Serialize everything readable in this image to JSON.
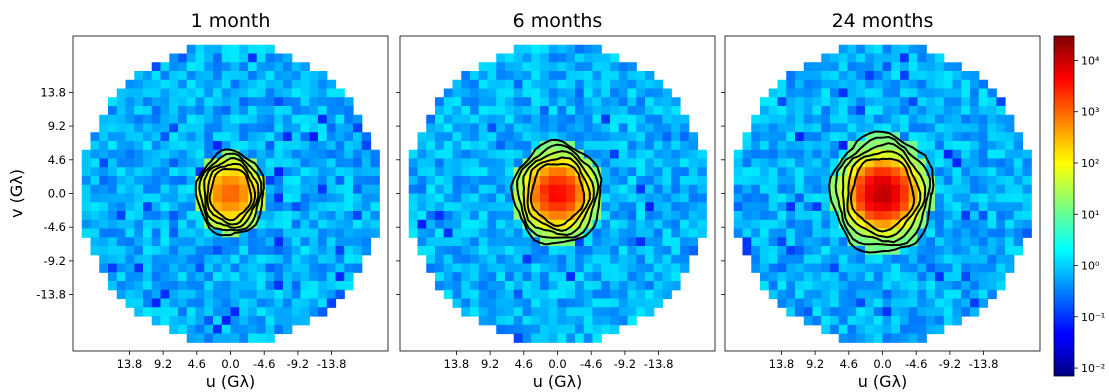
{
  "chart_data": {
    "type": "heatmap",
    "panels": [
      {
        "title": "1 month",
        "peak": 900,
        "halo_rx": 4.6,
        "halo_ry": 5.8,
        "contour_levels": [
          1.5,
          2.0,
          2.6,
          3.2,
          4.0
        ]
      },
      {
        "title": "6 months",
        "peak": 4000,
        "halo_rx": 6.0,
        "halo_ry": 7.0,
        "contour_levels": [
          1.5,
          2.0,
          2.6,
          3.2,
          4.0
        ]
      },
      {
        "title": "24 months",
        "peak": 12000,
        "halo_rx": 7.0,
        "halo_ry": 8.2,
        "contour_levels": [
          1.5,
          2.0,
          2.6,
          3.2,
          4.0
        ]
      }
    ],
    "x_ticks": [
      "13.8",
      "9.2",
      "4.6",
      "0.0",
      "-4.6",
      "-9.2",
      "-13.8"
    ],
    "y_ticks": [
      "13.8",
      "9.2",
      "4.6",
      "0.0",
      "-4.6",
      "-9.2",
      "-13.8"
    ],
    "xlabel": "u (Gλ)",
    "ylabel": "v (Gλ)",
    "axis_range": [
      -21.5,
      21.5
    ],
    "aperture_radius": 20.5,
    "colorbar": {
      "scale": "log",
      "range": [
        0.007,
        30000
      ],
      "tick_labels": [
        "10⁻²",
        "10⁻¹",
        "10⁰",
        "10¹",
        "10²",
        "10³",
        "10⁴"
      ],
      "colormap": "jet"
    }
  }
}
